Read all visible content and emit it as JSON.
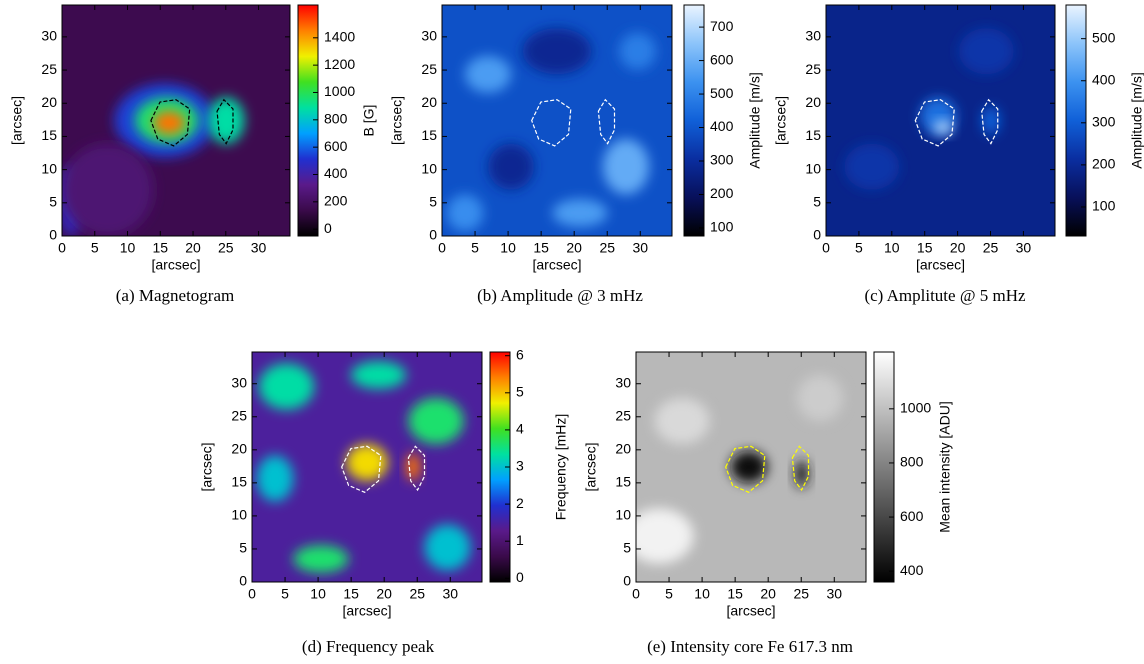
{
  "chart_data": [
    {
      "type": "image",
      "caption": "(a) Magnetogram",
      "xlabel": "[arcsec]",
      "ylabel": "[arcsec]",
      "xlim": [
        0,
        34.8
      ],
      "ylim": [
        0,
        34.8
      ],
      "xticks": [
        0,
        5,
        10,
        15,
        20,
        25,
        30
      ],
      "yticks": [
        0,
        5,
        10,
        15,
        20,
        25,
        30
      ],
      "contour_color": "#000000",
      "colorbar": {
        "label": "B [G]",
        "lim": [
          -50,
          1640
        ],
        "ticks": [
          0,
          200,
          400,
          600,
          800,
          1000,
          1200,
          1400
        ],
        "colormap": [
          "#000000",
          "#3a0a4a",
          "#5a1a8a",
          "#2030d0",
          "#00a0ff",
          "#00e0a0",
          "#40e020",
          "#f0f000",
          "#ff8000",
          "#ff0000"
        ]
      }
    },
    {
      "type": "image",
      "caption": "(b) Amplitude @ 3 mHz",
      "xlabel": "[arcsec]",
      "ylabel": "[arcsec]",
      "xlim": [
        0,
        34.8
      ],
      "ylim": [
        0,
        34.8
      ],
      "xticks": [
        0,
        5,
        10,
        15,
        20,
        25,
        30
      ],
      "yticks": [
        0,
        5,
        10,
        15,
        20,
        25,
        30
      ],
      "contour_color": "#ffffff",
      "colorbar": {
        "label": "Amplitude [m/s]",
        "lim": [
          76,
          766
        ],
        "ticks": [
          100,
          200,
          300,
          400,
          500,
          600,
          700
        ],
        "colormap": [
          "#000000",
          "#08105a",
          "#0a2ea0",
          "#1060d8",
          "#3c92f0",
          "#8cc4fa",
          "#eaf4ff"
        ]
      }
    },
    {
      "type": "image",
      "caption": "(c) Amplitute @ 5 mHz",
      "xlabel": "[arcsec]",
      "ylabel": "[arcsec]",
      "xlim": [
        0,
        34.8
      ],
      "ylim": [
        0,
        34.8
      ],
      "xticks": [
        0,
        5,
        10,
        15,
        20,
        25,
        30
      ],
      "yticks": [
        0,
        5,
        10,
        15,
        20,
        25,
        30
      ],
      "contour_color": "#ffffff",
      "colorbar": {
        "label": "Amplitude [m/s]",
        "lim": [
          31,
          580
        ],
        "ticks": [
          100,
          200,
          300,
          400,
          500
        ],
        "colormap": [
          "#000000",
          "#08105a",
          "#0a2ea0",
          "#1060d8",
          "#3c92f0",
          "#8cc4fa",
          "#eaf4ff"
        ]
      }
    },
    {
      "type": "image",
      "caption": "(d) Frequency peak",
      "xlabel": "[arcsec]",
      "ylabel": "[arcsec]",
      "xlim": [
        0,
        34.8
      ],
      "ylim": [
        0,
        34.8
      ],
      "xticks": [
        0,
        5,
        10,
        15,
        20,
        25,
        30
      ],
      "yticks": [
        0,
        5,
        10,
        15,
        20,
        25,
        30
      ],
      "contour_color": "#ffffff",
      "colorbar": {
        "label": "Frequency [mHz]",
        "lim": [
          -0.1,
          6.1
        ],
        "ticks": [
          0,
          1,
          2,
          3,
          4,
          5,
          6
        ],
        "colormap": [
          "#000000",
          "#3a0a4a",
          "#5a1a8a",
          "#2030d0",
          "#00a0ff",
          "#00e0a0",
          "#40e020",
          "#f0f000",
          "#ff8000",
          "#ff0000"
        ]
      }
    },
    {
      "type": "image",
      "caption": "(e) Intensity core Fe 617.3 nm",
      "xlabel": "[arcsec]",
      "ylabel": "[arcsec]",
      "xlim": [
        0,
        34.8
      ],
      "ylim": [
        0,
        34.8
      ],
      "xticks": [
        0,
        5,
        10,
        15,
        20,
        25,
        30
      ],
      "yticks": [
        0,
        5,
        10,
        15,
        20,
        25,
        30
      ],
      "contour_color": "#ffff00",
      "colorbar": {
        "label": "Mean intensity [ADU]",
        "lim": [
          360,
          1210
        ],
        "ticks": [
          400,
          600,
          800,
          1000
        ],
        "colormap": [
          "#000000",
          "#ffffff"
        ]
      }
    }
  ]
}
